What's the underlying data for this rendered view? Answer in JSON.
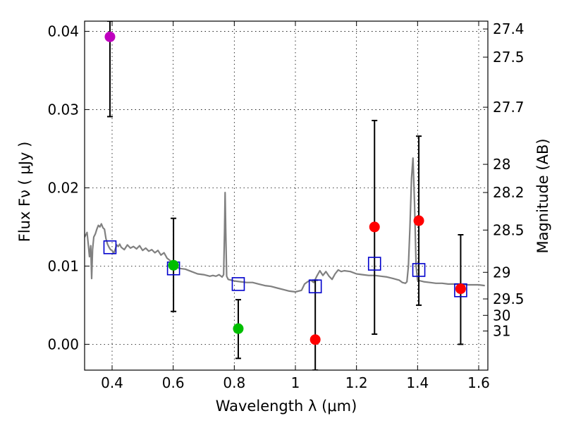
{
  "chart_data": {
    "type": "scatter",
    "xlabel": "Wavelength  λ (μm)",
    "ylabel": "Flux  Fν  ( μJy )",
    "ylabel_right": "Magnitude (AB)",
    "xlim": [
      0.31,
      1.63
    ],
    "ylim": [
      -0.0033,
      0.0413
    ],
    "xticks": [
      0.4,
      0.6,
      0.8,
      1.0,
      1.2,
      1.4,
      1.6
    ],
    "xtick_labels": [
      "0.4",
      "0.6",
      "0.8",
      "1",
      "1.2",
      "1.4",
      "1.6"
    ],
    "yticks": [
      0.0,
      0.01,
      0.02,
      0.03,
      0.04
    ],
    "ytick_labels": [
      "0.00",
      "0.01",
      "0.02",
      "0.03",
      "0.04"
    ],
    "mag_ticks": [
      {
        "label": "27.4",
        "flux": 0.0403
      },
      {
        "label": "27.5",
        "flux": 0.0367
      },
      {
        "label": "27.7",
        "flux": 0.0303
      },
      {
        "label": "28",
        "flux": 0.023
      },
      {
        "label": "28.2",
        "flux": 0.0194
      },
      {
        "label": "28.5",
        "flux": 0.0146
      },
      {
        "label": "29",
        "flux": 0.0092
      },
      {
        "label": "29.5",
        "flux": 0.0058
      },
      {
        "label": "30",
        "flux": 0.0037
      },
      {
        "label": "31",
        "flux": 0.0017
      }
    ],
    "grid": true,
    "measurements": [
      {
        "x": 0.393,
        "y": 0.0393,
        "yerr_low": 0.0291,
        "yerr_high": 0.0413,
        "color": "#bf00bf"
      },
      {
        "x": 0.601,
        "y": 0.0101,
        "yerr_low": 0.0042,
        "yerr_high": 0.0161,
        "color": "#00bf00"
      },
      {
        "x": 0.813,
        "y": 0.002,
        "yerr_low": -0.0018,
        "yerr_high": 0.0057,
        "color": "#00bf00"
      },
      {
        "x": 1.065,
        "y": 0.0006,
        "yerr_low": -0.0033,
        "yerr_high": 0.0082,
        "color": "#ff0000"
      },
      {
        "x": 1.259,
        "y": 0.015,
        "yerr_low": 0.0013,
        "yerr_high": 0.0286,
        "color": "#ff0000"
      },
      {
        "x": 1.404,
        "y": 0.0158,
        "yerr_low": 0.005,
        "yerr_high": 0.0266,
        "color": "#ff0000"
      },
      {
        "x": 1.541,
        "y": 0.0071,
        "yerr_low": 0.0,
        "yerr_high": 0.014,
        "color": "#ff0000"
      }
    ],
    "model_photometry": [
      {
        "x": 0.393,
        "y": 0.0124
      },
      {
        "x": 0.601,
        "y": 0.0097
      },
      {
        "x": 0.813,
        "y": 0.0077
      },
      {
        "x": 1.065,
        "y": 0.0074
      },
      {
        "x": 1.259,
        "y": 0.0103
      },
      {
        "x": 1.404,
        "y": 0.0095
      },
      {
        "x": 1.541,
        "y": 0.0069
      }
    ],
    "model_spectrum": {
      "color": "#808080",
      "x": [
        0.31,
        0.318,
        0.322,
        0.326,
        0.33,
        0.333,
        0.336,
        0.34,
        0.345,
        0.35,
        0.355,
        0.36,
        0.365,
        0.37,
        0.375,
        0.38,
        0.385,
        0.39,
        0.395,
        0.4,
        0.405,
        0.41,
        0.415,
        0.42,
        0.425,
        0.43,
        0.44,
        0.45,
        0.46,
        0.47,
        0.48,
        0.49,
        0.5,
        0.51,
        0.52,
        0.53,
        0.54,
        0.55,
        0.56,
        0.57,
        0.58,
        0.59,
        0.6,
        0.62,
        0.64,
        0.66,
        0.68,
        0.7,
        0.72,
        0.73,
        0.74,
        0.75,
        0.76,
        0.765,
        0.768,
        0.77,
        0.772,
        0.775,
        0.78,
        0.8,
        0.82,
        0.84,
        0.86,
        0.88,
        0.9,
        0.92,
        0.94,
        0.96,
        0.98,
        1.0,
        1.02,
        1.03,
        1.04,
        1.05,
        1.06,
        1.07,
        1.08,
        1.09,
        1.1,
        1.11,
        1.12,
        1.13,
        1.14,
        1.15,
        1.16,
        1.18,
        1.2,
        1.22,
        1.24,
        1.26,
        1.28,
        1.3,
        1.32,
        1.34,
        1.35,
        1.36,
        1.365,
        1.37,
        1.375,
        1.38,
        1.385,
        1.39,
        1.395,
        1.4,
        1.42,
        1.44,
        1.46,
        1.48,
        1.5,
        1.52,
        1.54,
        1.56,
        1.58,
        1.6,
        1.62
      ],
      "y": [
        0.0137,
        0.0143,
        0.0128,
        0.0112,
        0.0126,
        0.0084,
        0.0121,
        0.0137,
        0.0141,
        0.0147,
        0.0152,
        0.015,
        0.0154,
        0.0149,
        0.0147,
        0.0135,
        0.0128,
        0.0124,
        0.0121,
        0.012,
        0.0116,
        0.0121,
        0.0127,
        0.0125,
        0.0128,
        0.0124,
        0.0121,
        0.0127,
        0.0123,
        0.0125,
        0.0122,
        0.0126,
        0.012,
        0.0123,
        0.0119,
        0.0121,
        0.0117,
        0.012,
        0.0114,
        0.0117,
        0.011,
        0.0107,
        0.0102,
        0.0097,
        0.0096,
        0.0093,
        0.009,
        0.0089,
        0.0087,
        0.0088,
        0.0087,
        0.0089,
        0.0086,
        0.0089,
        0.0145,
        0.0194,
        0.0145,
        0.0087,
        0.0083,
        0.0081,
        0.008,
        0.0079,
        0.0079,
        0.0077,
        0.0075,
        0.0074,
        0.0072,
        0.007,
        0.0068,
        0.0067,
        0.0069,
        0.0077,
        0.008,
        0.0082,
        0.0079,
        0.0087,
        0.0094,
        0.0088,
        0.0093,
        0.0087,
        0.0083,
        0.009,
        0.0095,
        0.0093,
        0.0094,
        0.0093,
        0.009,
        0.0089,
        0.0088,
        0.0088,
        0.0087,
        0.0086,
        0.0084,
        0.0082,
        0.0079,
        0.0078,
        0.008,
        0.01,
        0.015,
        0.0212,
        0.0238,
        0.018,
        0.01,
        0.0082,
        0.008,
        0.0079,
        0.0078,
        0.0078,
        0.0077,
        0.0077,
        0.0077,
        0.0076,
        0.0076,
        0.0076,
        0.0075
      ]
    }
  }
}
